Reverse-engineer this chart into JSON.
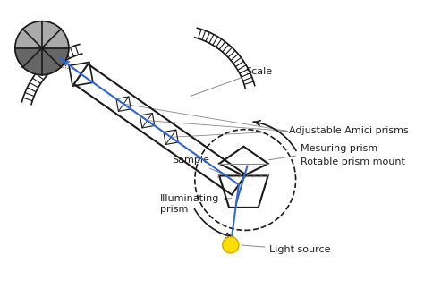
{
  "bg_color": "#ffffff",
  "line_color": "#1a1a1a",
  "blue_color": "#3366cc",
  "labels": {
    "scale": "Scale",
    "amici": "Adjustable Amici prisms",
    "measuring": "Mesuring prism",
    "rotable": "Rotable prism mount",
    "sample": "Sample",
    "illuminating": "Illuminating\nprism",
    "light": "Light source"
  },
  "label_fontsize": 8,
  "figsize": [
    4.74,
    3.42
  ],
  "dpi": 100
}
